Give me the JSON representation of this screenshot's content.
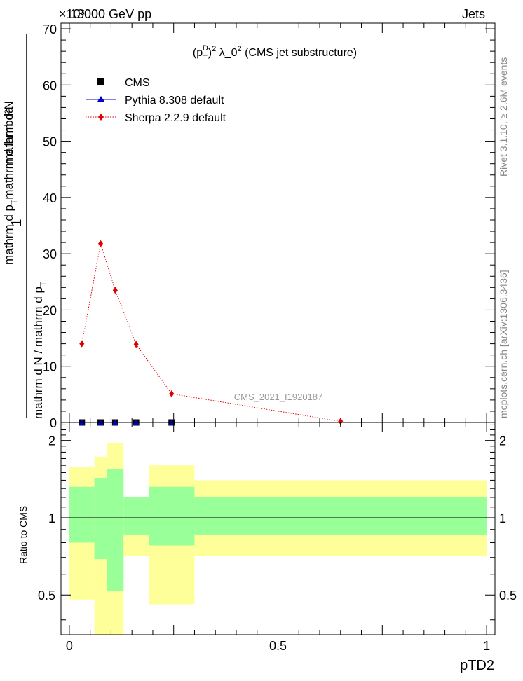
{
  "header": {
    "energy": "13000 GeV pp",
    "process": "Jets",
    "exponent": "×10³"
  },
  "side_labels": {
    "rivet": "Rivet 3.1.10, ≥ 2.6M events",
    "mcplots": "mcplots.cern.ch [arXiv:1306.3436]"
  },
  "chart_data": [
    {
      "type": "line",
      "title": "(pTD)² λ_0² (CMS jet substructure)",
      "analysis_label": "CMS_2021_I1920187",
      "ylabel_numerator": "1",
      "ylabel_denominator_main": "mathrm d N / mathrm d p",
      "ylabel_denominator_sub": "T",
      "ylabel_numerator_main": "mathrm d²N",
      "ylabel_numerator_mid": "mathrm d p",
      "ylabel_numerator_mid_sub": "T",
      "ylabel_numerator_tail": "mathrm d lambda",
      "ylim": [
        0,
        71
      ],
      "xlim": [
        -0.02,
        1.02
      ],
      "yticks": [
        0,
        10,
        20,
        30,
        40,
        50,
        60,
        70
      ],
      "ytick_labels": [
        "0",
        "10",
        "20",
        "30",
        "40",
        "50",
        "60",
        "70"
      ],
      "legend_position": "top-left",
      "series": [
        {
          "name": "CMS",
          "color": "#000000",
          "marker": "square",
          "x": [
            0.03,
            0.075,
            0.11,
            0.16,
            0.245
          ],
          "y": [
            0,
            0,
            0,
            0,
            0
          ]
        },
        {
          "name": "Pythia 8.308 default",
          "color": "#0000cc",
          "marker": "triangle",
          "x": [
            0.03,
            0.075,
            0.11,
            0.16,
            0.245
          ],
          "y": [
            0,
            0,
            0,
            0,
            0
          ]
        },
        {
          "name": "Sherpa 2.2.9 default",
          "color": "#e00000",
          "marker": "diamond",
          "line": "dotted",
          "x": [
            0.03,
            0.075,
            0.11,
            0.16,
            0.245,
            0.65
          ],
          "y": [
            14.0,
            31.8,
            23.5,
            13.9,
            5.1,
            0.2
          ]
        }
      ]
    },
    {
      "type": "area",
      "ylabel": "Ratio to CMS",
      "xlabel": "pTD2",
      "ylim": [
        0.35,
        2.35
      ],
      "log_y": true,
      "xticks": [
        0,
        0.5,
        1
      ],
      "xtick_labels": [
        "0",
        "0.5",
        "1"
      ],
      "yticks": [
        0.5,
        1,
        2
      ],
      "ytick_labels": [
        "0.5",
        "1",
        "2"
      ],
      "bins": [
        {
          "x0": 0.0,
          "x1": 0.06,
          "inner": [
            0.8,
            1.32
          ],
          "outer": [
            0.48,
            1.58
          ]
        },
        {
          "x0": 0.06,
          "x1": 0.09,
          "inner": [
            0.69,
            1.43
          ],
          "outer": [
            0.35,
            1.73
          ]
        },
        {
          "x0": 0.09,
          "x1": 0.13,
          "inner": [
            0.52,
            1.55
          ],
          "outer": [
            0.35,
            1.95
          ]
        },
        {
          "x0": 0.13,
          "x1": 0.19,
          "inner": [
            0.86,
            1.2
          ],
          "outer": [
            0.71,
            1.2
          ]
        },
        {
          "x0": 0.19,
          "x1": 0.3,
          "inner": [
            0.78,
            1.32
          ],
          "outer": [
            0.46,
            1.6
          ]
        },
        {
          "x0": 0.3,
          "x1": 1.0,
          "inner": [
            0.86,
            1.2
          ],
          "outer": [
            0.71,
            1.4
          ]
        }
      ],
      "colors": {
        "inner": "#99ff99",
        "outer": "#ffff99"
      }
    }
  ]
}
